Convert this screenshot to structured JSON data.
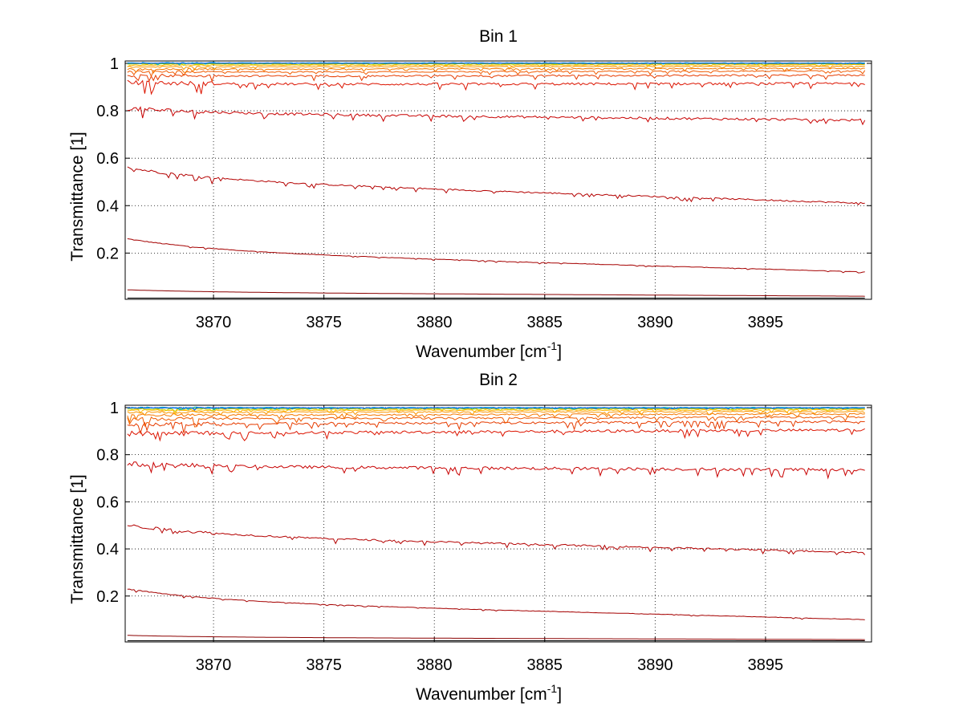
{
  "figure": {
    "background": "#ffffff"
  },
  "chart_data": [
    {
      "type": "line",
      "title": "Bin 1",
      "xlabel": "Wavenumber [cm",
      "xlabel_sup": "-1",
      "xlabel_end": "]",
      "ylabel": "Transmittance [1]",
      "xlim": [
        3866,
        3899.8
      ],
      "ylim": [
        0.005,
        1.01
      ],
      "x_ticks": [
        3870,
        3875,
        3880,
        3885,
        3890,
        3895
      ],
      "y_ticks": [
        0.2,
        0.4,
        0.6,
        0.8,
        1
      ],
      "y_tick_labels": [
        "0.2",
        "0.4",
        "0.6",
        "0.8",
        "1"
      ],
      "grid": true,
      "grid_style": "dotted",
      "x_range": [
        3866.1,
        3899.5
      ],
      "series": [
        {
          "color": "#000000",
          "start": 0.01,
          "end": 0.01,
          "decay": 0.0,
          "noise": 0.0
        },
        {
          "color": "#8b0000",
          "start": 0.035,
          "end": 0.018,
          "decay": 0.01,
          "noise": 0.0
        },
        {
          "color": "#a50000",
          "start": 0.21,
          "end": 0.12,
          "decay": 0.05,
          "noise": 0.002
        },
        {
          "color": "#b40000",
          "start": 0.51,
          "end": 0.41,
          "decay": 0.05,
          "noise": 0.006
        },
        {
          "color": "#c80000",
          "start": 0.79,
          "end": 0.76,
          "decay": 0.02,
          "noise": 0.01
        },
        {
          "color": "#dc1400",
          "start": 0.91,
          "end": 0.915,
          "decay": 0.01,
          "noise": 0.01
        },
        {
          "color": "#e63c00",
          "start": 0.945,
          "end": 0.95,
          "decay": 0.005,
          "noise": 0.007
        },
        {
          "color": "#f05a00",
          "start": 0.962,
          "end": 0.968,
          "decay": 0.004,
          "noise": 0.005
        },
        {
          "color": "#f57800",
          "start": 0.975,
          "end": 0.979,
          "decay": 0.0,
          "noise": 0.004
        },
        {
          "color": "#fa9600",
          "start": 0.985,
          "end": 0.988,
          "decay": 0.0,
          "noise": 0.003
        },
        {
          "color": "#ffb400",
          "start": 0.992,
          "end": 0.994,
          "decay": 0.0,
          "noise": 0.002
        },
        {
          "color": "#c8d200",
          "start": 0.997,
          "end": 0.998,
          "decay": 0.0,
          "noise": 0.002
        },
        {
          "color": "#50c832",
          "start": 1.0,
          "end": 1.0,
          "decay": 0.0,
          "noise": 0.001
        },
        {
          "color": "#00b4c8",
          "start": 1.002,
          "end": 1.002,
          "decay": 0.0,
          "noise": 0.002
        },
        {
          "color": "#0050ff",
          "start": 1.001,
          "end": 1.001,
          "decay": 0.0,
          "noise": 0.001
        }
      ]
    },
    {
      "type": "line",
      "title": "Bin 2",
      "xlabel": "Wavenumber [cm",
      "xlabel_sup": "-1",
      "xlabel_end": "]",
      "ylabel": "Transmittance [1]",
      "xlim": [
        3866,
        3899.8
      ],
      "ylim": [
        0.005,
        1.01
      ],
      "x_ticks": [
        3870,
        3875,
        3880,
        3885,
        3890,
        3895
      ],
      "y_ticks": [
        0.2,
        0.4,
        0.6,
        0.8,
        1
      ],
      "y_tick_labels": [
        "0.2",
        "0.4",
        "0.6",
        "0.8",
        "1"
      ],
      "grid": true,
      "grid_style": "dotted",
      "x_range": [
        3866.1,
        3899.5
      ],
      "series": [
        {
          "color": "#000000",
          "start": 0.01,
          "end": 0.01,
          "decay": 0.0,
          "noise": 0.0
        },
        {
          "color": "#8b0000",
          "start": 0.025,
          "end": 0.015,
          "decay": 0.008,
          "noise": 0.0
        },
        {
          "color": "#a50000",
          "start": 0.18,
          "end": 0.1,
          "decay": 0.05,
          "noise": 0.002
        },
        {
          "color": "#b40000",
          "start": 0.46,
          "end": 0.385,
          "decay": 0.04,
          "noise": 0.007
        },
        {
          "color": "#c80000",
          "start": 0.75,
          "end": 0.735,
          "decay": 0.01,
          "noise": 0.012
        },
        {
          "color": "#dc1400",
          "start": 0.89,
          "end": 0.905,
          "decay": 0.0,
          "noise": 0.012
        },
        {
          "color": "#e63c00",
          "start": 0.93,
          "end": 0.94,
          "decay": 0.0,
          "noise": 0.01
        },
        {
          "color": "#f05a00",
          "start": 0.952,
          "end": 0.96,
          "decay": 0.0,
          "noise": 0.008
        },
        {
          "color": "#f57800",
          "start": 0.968,
          "end": 0.973,
          "decay": 0.0,
          "noise": 0.006
        },
        {
          "color": "#fa9600",
          "start": 0.98,
          "end": 0.983,
          "decay": 0.0,
          "noise": 0.005
        },
        {
          "color": "#ffb400",
          "start": 0.988,
          "end": 0.99,
          "decay": 0.0,
          "noise": 0.004
        },
        {
          "color": "#c8d200",
          "start": 0.994,
          "end": 0.995,
          "decay": 0.0,
          "noise": 0.003
        },
        {
          "color": "#50c832",
          "start": 0.998,
          "end": 0.998,
          "decay": 0.0,
          "noise": 0.002
        },
        {
          "color": "#00b4c8",
          "start": 1.0,
          "end": 1.0,
          "decay": 0.0,
          "noise": 0.003
        },
        {
          "color": "#0050ff",
          "start": 0.999,
          "end": 0.999,
          "decay": 0.0,
          "noise": 0.002
        }
      ]
    }
  ]
}
